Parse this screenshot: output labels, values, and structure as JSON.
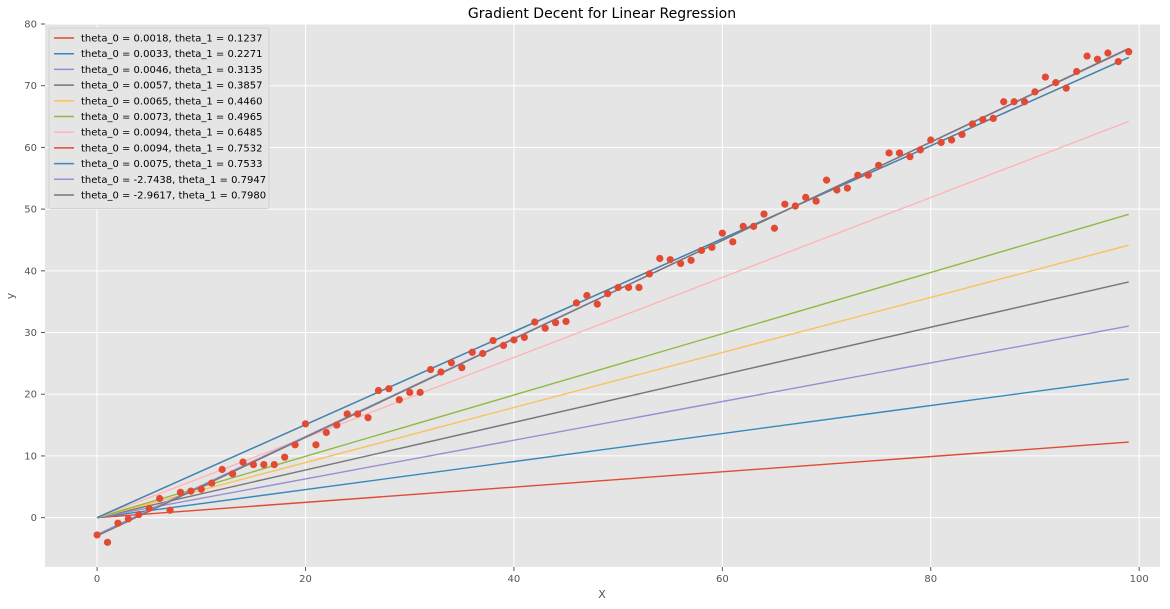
{
  "chart_data": {
    "type": "scatter",
    "title": "Gradient Decent for Linear Regression",
    "xlabel": "X",
    "ylabel": "y",
    "xlim": [
      -5,
      102
    ],
    "ylim": [
      -8,
      80
    ],
    "x_ticks": [
      0,
      20,
      40,
      60,
      80,
      100
    ],
    "y_ticks": [
      0,
      10,
      20,
      30,
      40,
      50,
      60,
      70,
      80
    ],
    "grid": true,
    "legend_position": "top-left",
    "background_color": "#E5E5E5",
    "scatter": {
      "color": "#E24A33",
      "points": [
        [
          0,
          -2.8
        ],
        [
          1,
          -4.0
        ],
        [
          2,
          -0.9
        ],
        [
          3,
          -0.2
        ],
        [
          4,
          0.5
        ],
        [
          5,
          1.5
        ],
        [
          6,
          3.1
        ],
        [
          7,
          1.2
        ],
        [
          8,
          4.1
        ],
        [
          9,
          4.3
        ],
        [
          10,
          4.6
        ],
        [
          11,
          5.6
        ],
        [
          12,
          7.8
        ],
        [
          13,
          7.1
        ],
        [
          14,
          9.0
        ],
        [
          15,
          8.6
        ],
        [
          16,
          8.6
        ],
        [
          17,
          8.6
        ],
        [
          18,
          9.8
        ],
        [
          19,
          11.8
        ],
        [
          20,
          15.2
        ],
        [
          21,
          11.8
        ],
        [
          22,
          13.8
        ],
        [
          23,
          15.0
        ],
        [
          24,
          16.8
        ],
        [
          25,
          16.8
        ],
        [
          26,
          16.2
        ],
        [
          27,
          20.6
        ],
        [
          28,
          20.9
        ],
        [
          29,
          19.1
        ],
        [
          30,
          20.3
        ],
        [
          31,
          20.3
        ],
        [
          32,
          24.0
        ],
        [
          33,
          23.6
        ],
        [
          34,
          25.1
        ],
        [
          35,
          24.3
        ],
        [
          36,
          26.8
        ],
        [
          37,
          26.6
        ],
        [
          38,
          28.7
        ],
        [
          39,
          27.9
        ],
        [
          40,
          28.8
        ],
        [
          41,
          29.2
        ],
        [
          42,
          31.7
        ],
        [
          43,
          30.7
        ],
        [
          44,
          31.6
        ],
        [
          45,
          31.8
        ],
        [
          46,
          34.8
        ],
        [
          47,
          36.0
        ],
        [
          48,
          34.6
        ],
        [
          49,
          36.3
        ],
        [
          50,
          37.3
        ],
        [
          51,
          37.3
        ],
        [
          52,
          37.3
        ],
        [
          53,
          39.5
        ],
        [
          54,
          42.0
        ],
        [
          55,
          41.8
        ],
        [
          56,
          41.2
        ],
        [
          57,
          41.7
        ],
        [
          58,
          43.3
        ],
        [
          59,
          43.8
        ],
        [
          60,
          46.1
        ],
        [
          61,
          44.7
        ],
        [
          62,
          47.2
        ],
        [
          63,
          47.2
        ],
        [
          64,
          49.2
        ],
        [
          65,
          46.9
        ],
        [
          66,
          50.8
        ],
        [
          67,
          50.5
        ],
        [
          68,
          51.9
        ],
        [
          69,
          51.3
        ],
        [
          70,
          54.7
        ],
        [
          71,
          53.1
        ],
        [
          72,
          53.4
        ],
        [
          73,
          55.5
        ],
        [
          74,
          55.5
        ],
        [
          75,
          57.1
        ],
        [
          76,
          59.1
        ],
        [
          77,
          59.1
        ],
        [
          78,
          58.5
        ],
        [
          79,
          59.6
        ],
        [
          80,
          61.2
        ],
        [
          81,
          60.8
        ],
        [
          82,
          61.2
        ],
        [
          83,
          62.1
        ],
        [
          84,
          63.8
        ],
        [
          85,
          64.5
        ],
        [
          86,
          64.7
        ],
        [
          87,
          67.4
        ],
        [
          88,
          67.4
        ],
        [
          89,
          67.4
        ],
        [
          90,
          69.0
        ],
        [
          91,
          71.4
        ],
        [
          92,
          70.5
        ],
        [
          93,
          69.6
        ],
        [
          94,
          72.3
        ],
        [
          95,
          74.8
        ],
        [
          96,
          74.3
        ],
        [
          97,
          75.3
        ],
        [
          98,
          73.9
        ],
        [
          99,
          75.5
        ]
      ]
    },
    "series": [
      {
        "name": "theta_0 = 0.0018, theta_1 = 0.1237",
        "theta0": 0.0018,
        "theta1": 0.1237,
        "color": "#E24A33"
      },
      {
        "name": "theta_0 = 0.0033, theta_1 = 0.2271",
        "theta0": 0.0033,
        "theta1": 0.2271,
        "color": "#348ABD"
      },
      {
        "name": "theta_0 = 0.0046, theta_1 = 0.3135",
        "theta0": 0.0046,
        "theta1": 0.3135,
        "color": "#988ED5"
      },
      {
        "name": "theta_0 = 0.0057, theta_1 = 0.3857",
        "theta0": 0.0057,
        "theta1": 0.3857,
        "color": "#777777"
      },
      {
        "name": "theta_0 = 0.0065, theta_1 = 0.4460",
        "theta0": 0.0065,
        "theta1": 0.446,
        "color": "#FBC15E"
      },
      {
        "name": "theta_0 = 0.0073, theta_1 = 0.4965",
        "theta0": 0.0073,
        "theta1": 0.4965,
        "color": "#8EBA42"
      },
      {
        "name": "theta_0 = 0.0094, theta_1 = 0.6485",
        "theta0": 0.0094,
        "theta1": 0.6485,
        "color": "#FFB5B8"
      },
      {
        "name": "theta_0 = 0.0094, theta_1 = 0.7532",
        "theta0": 0.0094,
        "theta1": 0.7532,
        "color": "#E24A33"
      },
      {
        "name": "theta_0 = 0.0075, theta_1 = 0.7533",
        "theta0": 0.0075,
        "theta1": 0.7533,
        "color": "#348ABD"
      },
      {
        "name": "theta_0 = -2.7438, theta_1 = 0.7947",
        "theta0": -2.7438,
        "theta1": 0.7947,
        "color": "#988ED5"
      },
      {
        "name": "theta_0 = -2.9617, theta_1 = 0.7980",
        "theta0": -2.9617,
        "theta1": 0.798,
        "color": "#777777"
      }
    ],
    "line_x_range": [
      0,
      99
    ]
  }
}
